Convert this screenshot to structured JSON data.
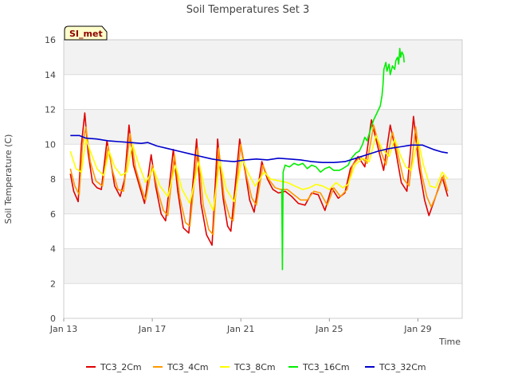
{
  "chart_data": {
    "type": "line",
    "title": "Soil Temperatures Set 3",
    "xlabel": "Time",
    "ylabel": "Soil Temperature (C)",
    "badge": "SI_met",
    "ylim": [
      0,
      16
    ],
    "yticks": [
      0,
      2,
      4,
      6,
      8,
      10,
      12,
      14,
      16
    ],
    "xlim": [
      "Jan 13",
      "Jan 31"
    ],
    "xticks": [
      "Jan 13",
      "Jan 17",
      "Jan 21",
      "Jan 25",
      "Jan 29"
    ],
    "grid": true,
    "legend_position": "bottom",
    "series": [
      {
        "name": "TC3_2Cm",
        "color": "#e00000",
        "points": [
          [
            13.3,
            8.3
          ],
          [
            13.45,
            7.3
          ],
          [
            13.65,
            6.7
          ],
          [
            13.8,
            10.0
          ],
          [
            13.95,
            11.8
          ],
          [
            14.1,
            9.5
          ],
          [
            14.3,
            7.8
          ],
          [
            14.5,
            7.5
          ],
          [
            14.7,
            7.4
          ],
          [
            14.95,
            10.2
          ],
          [
            15.1,
            9.2
          ],
          [
            15.3,
            7.6
          ],
          [
            15.55,
            7.0
          ],
          [
            15.75,
            8.0
          ],
          [
            15.95,
            11.1
          ],
          [
            16.15,
            8.8
          ],
          [
            16.4,
            7.7
          ],
          [
            16.65,
            6.6
          ],
          [
            16.95,
            9.4
          ],
          [
            17.15,
            7.6
          ],
          [
            17.4,
            6.0
          ],
          [
            17.6,
            5.6
          ],
          [
            17.95,
            9.7
          ],
          [
            18.15,
            7.3
          ],
          [
            18.4,
            5.2
          ],
          [
            18.65,
            4.9
          ],
          [
            19.0,
            10.3
          ],
          [
            19.2,
            6.6
          ],
          [
            19.45,
            4.8
          ],
          [
            19.7,
            4.2
          ],
          [
            19.95,
            10.3
          ],
          [
            20.2,
            6.9
          ],
          [
            20.4,
            5.3
          ],
          [
            20.55,
            5.0
          ],
          [
            20.95,
            10.3
          ],
          [
            21.2,
            8.4
          ],
          [
            21.4,
            6.8
          ],
          [
            21.6,
            6.1
          ],
          [
            21.95,
            9.0
          ],
          [
            22.2,
            8.0
          ],
          [
            22.45,
            7.4
          ],
          [
            22.7,
            7.2
          ],
          [
            23.0,
            7.3
          ],
          [
            23.3,
            7.0
          ],
          [
            23.6,
            6.6
          ],
          [
            23.9,
            6.5
          ],
          [
            24.2,
            7.2
          ],
          [
            24.5,
            7.1
          ],
          [
            24.8,
            6.2
          ],
          [
            25.1,
            7.5
          ],
          [
            25.4,
            6.9
          ],
          [
            25.7,
            7.2
          ],
          [
            25.95,
            8.6
          ],
          [
            26.3,
            9.3
          ],
          [
            26.6,
            8.7
          ],
          [
            26.9,
            11.4
          ],
          [
            27.2,
            9.8
          ],
          [
            27.45,
            8.5
          ],
          [
            27.75,
            11.1
          ],
          [
            28.0,
            9.6
          ],
          [
            28.25,
            7.8
          ],
          [
            28.5,
            7.3
          ],
          [
            28.8,
            11.6
          ],
          [
            29.05,
            8.7
          ],
          [
            29.3,
            6.8
          ],
          [
            29.5,
            5.9
          ],
          [
            29.8,
            7.0
          ],
          [
            30.1,
            8.1
          ],
          [
            30.35,
            7.0
          ]
        ]
      },
      {
        "name": "TC3_4Cm",
        "color": "#ff9900",
        "points": [
          [
            13.3,
            8.6
          ],
          [
            13.5,
            7.6
          ],
          [
            13.7,
            7.1
          ],
          [
            13.85,
            10.0
          ],
          [
            14.0,
            11.0
          ],
          [
            14.2,
            9.0
          ],
          [
            14.45,
            7.9
          ],
          [
            14.75,
            7.6
          ],
          [
            15.0,
            9.9
          ],
          [
            15.2,
            8.5
          ],
          [
            15.45,
            7.4
          ],
          [
            15.7,
            7.3
          ],
          [
            16.0,
            10.6
          ],
          [
            16.25,
            8.6
          ],
          [
            16.5,
            7.5
          ],
          [
            16.7,
            6.8
          ],
          [
            17.0,
            8.8
          ],
          [
            17.25,
            7.3
          ],
          [
            17.5,
            6.2
          ],
          [
            17.7,
            5.9
          ],
          [
            18.0,
            9.4
          ],
          [
            18.25,
            6.9
          ],
          [
            18.5,
            5.5
          ],
          [
            18.7,
            5.3
          ],
          [
            19.05,
            9.8
          ],
          [
            19.3,
            6.5
          ],
          [
            19.55,
            5.1
          ],
          [
            19.75,
            4.8
          ],
          [
            20.0,
            9.8
          ],
          [
            20.25,
            6.9
          ],
          [
            20.5,
            5.8
          ],
          [
            20.65,
            5.6
          ],
          [
            21.0,
            10.0
          ],
          [
            21.25,
            8.2
          ],
          [
            21.5,
            6.9
          ],
          [
            21.7,
            6.5
          ],
          [
            22.0,
            8.8
          ],
          [
            22.25,
            8.0
          ],
          [
            22.55,
            7.5
          ],
          [
            22.8,
            7.4
          ],
          [
            23.1,
            7.4
          ],
          [
            23.4,
            7.1
          ],
          [
            23.7,
            6.8
          ],
          [
            24.0,
            6.8
          ],
          [
            24.3,
            7.3
          ],
          [
            24.6,
            7.2
          ],
          [
            24.9,
            6.5
          ],
          [
            25.2,
            7.5
          ],
          [
            25.5,
            7.0
          ],
          [
            25.8,
            7.4
          ],
          [
            26.05,
            8.8
          ],
          [
            26.4,
            9.3
          ],
          [
            26.7,
            8.9
          ],
          [
            27.0,
            11.1
          ],
          [
            27.3,
            9.7
          ],
          [
            27.55,
            8.8
          ],
          [
            27.85,
            10.7
          ],
          [
            28.1,
            9.4
          ],
          [
            28.35,
            8.0
          ],
          [
            28.6,
            7.6
          ],
          [
            28.9,
            11.0
          ],
          [
            29.15,
            8.4
          ],
          [
            29.4,
            7.0
          ],
          [
            29.6,
            6.4
          ],
          [
            29.9,
            7.3
          ],
          [
            30.15,
            8.2
          ],
          [
            30.35,
            7.3
          ]
        ]
      },
      {
        "name": "TC3_8Cm",
        "color": "#ffff00",
        "points": [
          [
            13.3,
            9.6
          ],
          [
            13.55,
            8.6
          ],
          [
            13.8,
            8.4
          ],
          [
            14.0,
            10.3
          ],
          [
            14.2,
            9.6
          ],
          [
            14.5,
            8.6
          ],
          [
            14.8,
            8.2
          ],
          [
            15.05,
            9.6
          ],
          [
            15.3,
            8.7
          ],
          [
            15.6,
            8.2
          ],
          [
            15.85,
            8.4
          ],
          [
            16.1,
            10.0
          ],
          [
            16.4,
            8.8
          ],
          [
            16.7,
            7.8
          ],
          [
            17.05,
            8.6
          ],
          [
            17.35,
            7.6
          ],
          [
            17.7,
            7.0
          ],
          [
            18.05,
            8.8
          ],
          [
            18.35,
            7.4
          ],
          [
            18.7,
            6.6
          ],
          [
            19.1,
            9.0
          ],
          [
            19.4,
            7.2
          ],
          [
            19.75,
            6.2
          ],
          [
            20.05,
            9.0
          ],
          [
            20.35,
            7.4
          ],
          [
            20.7,
            6.7
          ],
          [
            21.05,
            9.2
          ],
          [
            21.35,
            8.3
          ],
          [
            21.65,
            7.6
          ],
          [
            22.05,
            8.4
          ],
          [
            22.35,
            8.0
          ],
          [
            22.7,
            7.9
          ],
          [
            23.1,
            7.8
          ],
          [
            23.45,
            7.6
          ],
          [
            23.8,
            7.4
          ],
          [
            24.1,
            7.5
          ],
          [
            24.4,
            7.7
          ],
          [
            24.7,
            7.6
          ],
          [
            25.0,
            7.4
          ],
          [
            25.3,
            7.8
          ],
          [
            25.6,
            7.5
          ],
          [
            25.85,
            7.7
          ],
          [
            26.15,
            8.8
          ],
          [
            26.5,
            9.2
          ],
          [
            26.8,
            9.0
          ],
          [
            27.1,
            10.5
          ],
          [
            27.4,
            9.7
          ],
          [
            27.7,
            9.3
          ],
          [
            27.95,
            10.3
          ],
          [
            28.2,
            9.4
          ],
          [
            28.45,
            8.7
          ],
          [
            28.7,
            8.5
          ],
          [
            29.0,
            10.3
          ],
          [
            29.25,
            8.8
          ],
          [
            29.55,
            7.6
          ],
          [
            29.8,
            7.5
          ],
          [
            30.1,
            8.4
          ],
          [
            30.35,
            8.0
          ]
        ]
      },
      {
        "name": "TC3_16Cm",
        "color": "#00ee00",
        "points": [
          [
            22.85,
            7.4
          ],
          [
            22.88,
            2.8
          ],
          [
            22.91,
            8.4
          ],
          [
            23.0,
            8.8
          ],
          [
            23.2,
            8.7
          ],
          [
            23.4,
            8.9
          ],
          [
            23.6,
            8.8
          ],
          [
            23.8,
            8.9
          ],
          [
            24.0,
            8.6
          ],
          [
            24.2,
            8.8
          ],
          [
            24.4,
            8.7
          ],
          [
            24.6,
            8.4
          ],
          [
            24.8,
            8.6
          ],
          [
            25.0,
            8.7
          ],
          [
            25.2,
            8.5
          ],
          [
            25.45,
            8.5
          ],
          [
            25.6,
            8.6
          ],
          [
            25.85,
            8.8
          ],
          [
            26.0,
            9.2
          ],
          [
            26.2,
            9.5
          ],
          [
            26.35,
            9.6
          ],
          [
            26.5,
            10.0
          ],
          [
            26.6,
            10.4
          ],
          [
            26.7,
            10.2
          ],
          [
            26.85,
            10.8
          ],
          [
            27.0,
            11.4
          ],
          [
            27.15,
            11.8
          ],
          [
            27.3,
            12.2
          ],
          [
            27.38,
            12.8
          ],
          [
            27.42,
            13.4
          ],
          [
            27.46,
            14.3
          ],
          [
            27.55,
            14.7
          ],
          [
            27.6,
            14.2
          ],
          [
            27.7,
            14.6
          ],
          [
            27.75,
            14.0
          ],
          [
            27.85,
            14.5
          ],
          [
            27.95,
            14.3
          ],
          [
            28.0,
            14.8
          ],
          [
            28.08,
            15.0
          ],
          [
            28.13,
            14.6
          ],
          [
            28.18,
            15.5
          ],
          [
            28.22,
            15.0
          ],
          [
            28.28,
            15.3
          ],
          [
            28.35,
            15.1
          ],
          [
            28.38,
            14.7
          ]
        ]
      },
      {
        "name": "TC3_32Cm",
        "color": "#0000cc",
        "points": [
          [
            13.3,
            10.5
          ],
          [
            13.7,
            10.5
          ],
          [
            14.0,
            10.35
          ],
          [
            14.5,
            10.3
          ],
          [
            15.0,
            10.2
          ],
          [
            15.5,
            10.15
          ],
          [
            16.0,
            10.1
          ],
          [
            16.5,
            10.05
          ],
          [
            16.8,
            10.1
          ],
          [
            17.2,
            9.9
          ],
          [
            17.7,
            9.75
          ],
          [
            18.2,
            9.6
          ],
          [
            18.7,
            9.45
          ],
          [
            19.2,
            9.3
          ],
          [
            19.7,
            9.15
          ],
          [
            20.2,
            9.05
          ],
          [
            20.7,
            9.0
          ],
          [
            21.2,
            9.1
          ],
          [
            21.7,
            9.15
          ],
          [
            22.2,
            9.1
          ],
          [
            22.7,
            9.2
          ],
          [
            23.2,
            9.15
          ],
          [
            23.7,
            9.1
          ],
          [
            24.2,
            9.0
          ],
          [
            24.7,
            8.95
          ],
          [
            25.2,
            8.95
          ],
          [
            25.7,
            9.0
          ],
          [
            26.2,
            9.2
          ],
          [
            26.7,
            9.4
          ],
          [
            27.2,
            9.6
          ],
          [
            27.7,
            9.75
          ],
          [
            28.2,
            9.85
          ],
          [
            28.7,
            9.95
          ],
          [
            29.2,
            9.95
          ],
          [
            29.7,
            9.7
          ],
          [
            30.1,
            9.55
          ],
          [
            30.35,
            9.5
          ]
        ]
      }
    ]
  }
}
